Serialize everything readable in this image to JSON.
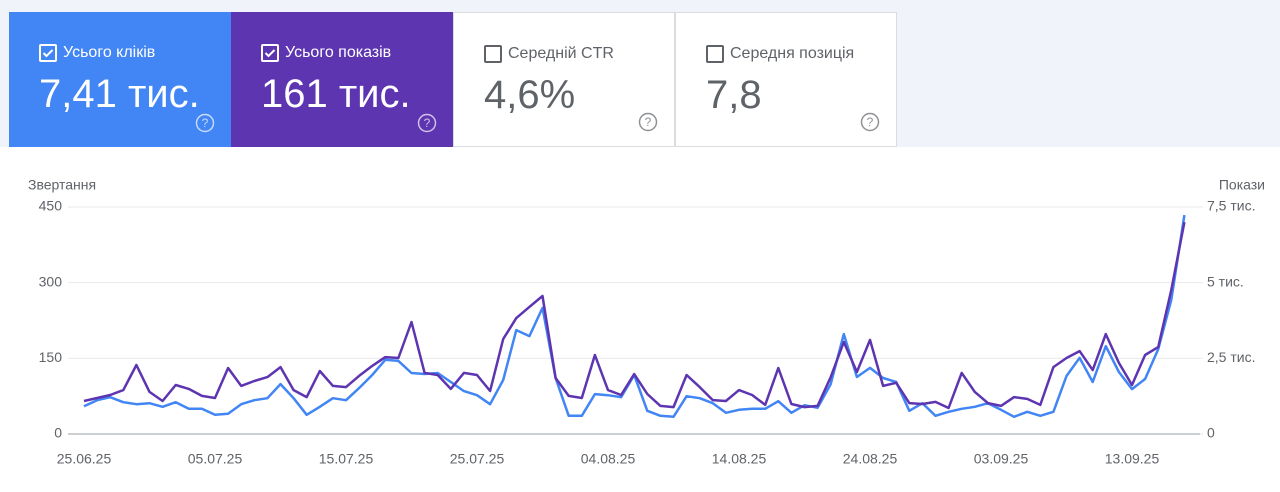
{
  "cards": [
    {
      "label": "Усього кліків",
      "value": "7,41 тис.",
      "checked": true
    },
    {
      "label": "Усього показів",
      "value": "161 тис.",
      "checked": true
    },
    {
      "label": "Середній CTR",
      "value": "4,6%",
      "checked": false
    },
    {
      "label": "Середня позиція",
      "value": "7,8",
      "checked": false
    }
  ],
  "chart_data": {
    "type": "line",
    "y_label": "Звертання",
    "y2_label": "Покази",
    "categories": [
      "25.06.25",
      null,
      null,
      null,
      null,
      null,
      null,
      null,
      null,
      null,
      "05.07.25",
      null,
      null,
      null,
      null,
      null,
      null,
      null,
      null,
      null,
      "15.07.25",
      null,
      null,
      null,
      null,
      null,
      null,
      null,
      null,
      null,
      "25.07.25",
      null,
      null,
      null,
      null,
      null,
      null,
      null,
      null,
      null,
      "04.08.25",
      null,
      null,
      null,
      null,
      null,
      null,
      null,
      null,
      null,
      "14.08.25",
      null,
      null,
      null,
      null,
      null,
      null,
      null,
      null,
      null,
      "24.08.25",
      null,
      null,
      null,
      null,
      null,
      null,
      null,
      null,
      null,
      "03.09.25",
      null,
      null,
      null,
      null,
      null,
      null,
      null,
      null,
      null,
      "13.09.25",
      null,
      null,
      null,
      null
    ],
    "series": [
      {
        "color": "#4285f4",
        "values": [
          55,
          67,
          73,
          63,
          59,
          61,
          54,
          63,
          50,
          50,
          38,
          40,
          59,
          67,
          71,
          99,
          71,
          38,
          54,
          71,
          67,
          91,
          117,
          147,
          145,
          121,
          119,
          121,
          103,
          85,
          77,
          59,
          107,
          206,
          194,
          250,
          111,
          36,
          36,
          79,
          77,
          73,
          117,
          46,
          36,
          34,
          75,
          71,
          61,
          42,
          48,
          50,
          50,
          65,
          42,
          57,
          52,
          99,
          198,
          113,
          131,
          111,
          103,
          46,
          61,
          36,
          44,
          50,
          54,
          61,
          48,
          34,
          44,
          36,
          44,
          115,
          151,
          103,
          174,
          123,
          89,
          109,
          168,
          266,
          434
        ]
      },
      {
        "color": "#5e35b1",
        "axis": "y2",
        "values": [
          1090,
          1190,
          1290,
          1450,
          2280,
          1390,
          1090,
          1620,
          1490,
          1260,
          1190,
          2180,
          1590,
          1750,
          1880,
          2210,
          1450,
          1220,
          2080,
          1590,
          1550,
          1920,
          2250,
          2540,
          2510,
          3700,
          2020,
          1950,
          1490,
          2020,
          1950,
          1420,
          3140,
          3830,
          4200,
          4560,
          1850,
          1260,
          1190,
          2610,
          1450,
          1290,
          1980,
          1320,
          930,
          890,
          1950,
          1550,
          1120,
          1090,
          1450,
          1290,
          960,
          2180,
          990,
          890,
          930,
          1880,
          3040,
          2050,
          3110,
          1590,
          1690,
          1020,
          990,
          1060,
          860,
          2020,
          1390,
          1020,
          930,
          1220,
          1160,
          960,
          2210,
          2510,
          2740,
          2110,
          3300,
          2350,
          1620,
          2610,
          2870,
          4760,
          7000
        ]
      }
    ],
    "ylim": [
      0,
      450
    ],
    "yticks": [
      0,
      150,
      300,
      450
    ],
    "y2lim": [
      0,
      7500
    ],
    "y2ticks": [
      0,
      {
        "value": 2500,
        "label": "2,5 тис."
      },
      {
        "value": 5000,
        "label": "5 тис."
      },
      {
        "value": 7500,
        "label": "7,5 тис."
      }
    ],
    "grid": true
  }
}
